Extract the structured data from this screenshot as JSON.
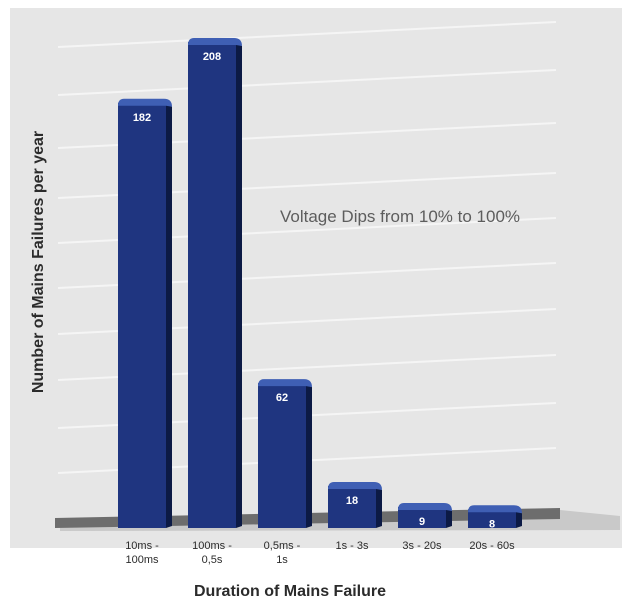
{
  "chart_data": {
    "type": "bar",
    "categories": [
      "10ms -\n100ms",
      "100ms -\n0,5s",
      "0,5ms -\n1s",
      "1s - 3s",
      "3s - 20s",
      "20s - 60s"
    ],
    "values": [
      182,
      208,
      62,
      18,
      9,
      8
    ],
    "data_labels": [
      "182",
      "208",
      "62",
      "18",
      "9",
      "8"
    ],
    "annotation": "Voltage Dips from 10% to 100%",
    "xlabel": "Duration of Mains Failure",
    "ylabel": "Number of Mains Failures per year",
    "ylim": [
      0,
      220
    ],
    "grid": true,
    "colors": {
      "bar_front": "#1f3580",
      "bar_top": "#3f5fb4",
      "bar_side": "#0c1a45",
      "background": "#e6e6e6",
      "gridline": "#f5f5f5",
      "floor": "#6d6d6d",
      "text": "#2b2b2b",
      "annotation_text": "#5d5d5d"
    }
  }
}
